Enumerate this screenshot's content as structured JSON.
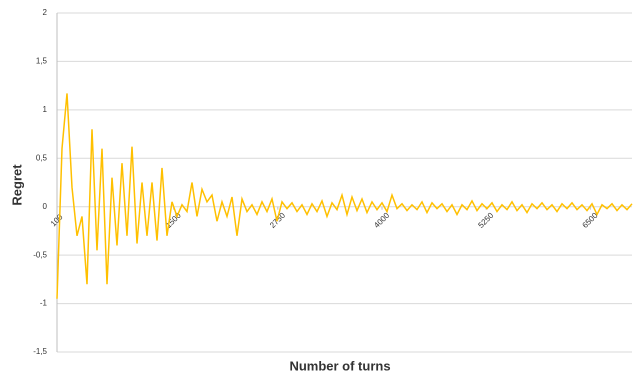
{
  "chart_data": {
    "type": "line",
    "xlabel": "Number of turns",
    "ylabel": "Regret",
    "x": [
      100,
      160,
      220,
      280,
      340,
      400,
      460,
      520,
      580,
      640,
      700,
      760,
      820,
      880,
      940,
      1000,
      1060,
      1120,
      1180,
      1240,
      1300,
      1360,
      1420,
      1480,
      1540,
      1600,
      1660,
      1720,
      1780,
      1840,
      1900,
      1960,
      2020,
      2080,
      2140,
      2200,
      2260,
      2320,
      2380,
      2440,
      2500,
      2560,
      2620,
      2680,
      2740,
      2800,
      2860,
      2920,
      2980,
      3040,
      3100,
      3160,
      3220,
      3280,
      3340,
      3400,
      3460,
      3520,
      3580,
      3640,
      3700,
      3760,
      3820,
      3880,
      3940,
      4000,
      4060,
      4120,
      4180,
      4240,
      4300,
      4360,
      4420,
      4480,
      4540,
      4600,
      4660,
      4720,
      4780,
      4840,
      4900,
      4960,
      5020,
      5080,
      5140,
      5200,
      5260,
      5320,
      5380,
      5440,
      5500,
      5560,
      5620,
      5680,
      5740,
      5800,
      5860,
      5920,
      5980,
      6040,
      6100,
      6160,
      6220,
      6280,
      6340,
      6400,
      6460,
      6520,
      6580,
      6640,
      6700,
      6760,
      6820,
      6880,
      6940,
      7000
    ],
    "series": [
      {
        "name": "Regret",
        "color": "#ffc000",
        "values": [
          -0.95,
          0.6,
          1.17,
          0.2,
          -0.3,
          -0.1,
          -0.8,
          0.8,
          -0.45,
          0.6,
          -0.8,
          0.3,
          -0.4,
          0.45,
          -0.3,
          0.62,
          -0.38,
          0.25,
          -0.3,
          0.25,
          -0.35,
          0.4,
          -0.3,
          0.05,
          -0.1,
          0.02,
          -0.05,
          0.25,
          -0.1,
          0.18,
          0.05,
          0.12,
          -0.15,
          0.05,
          -0.1,
          0.1,
          -0.3,
          0.08,
          -0.05,
          0.02,
          -0.08,
          0.05,
          -0.05,
          0.08,
          -0.15,
          0.05,
          -0.02,
          0.04,
          -0.05,
          0.02,
          -0.08,
          0.03,
          -0.05,
          0.06,
          -0.1,
          0.04,
          -0.03,
          0.12,
          -0.08,
          0.1,
          -0.04,
          0.08,
          -0.06,
          0.05,
          -0.03,
          0.04,
          -0.05,
          0.12,
          -0.02,
          0.03,
          -0.04,
          0.02,
          -0.03,
          0.05,
          -0.06,
          0.04,
          -0.02,
          0.03,
          -0.05,
          0.02,
          -0.08,
          0.02,
          -0.03,
          0.06,
          -0.04,
          0.03,
          -0.02,
          0.04,
          -0.05,
          0.02,
          -0.03,
          0.05,
          -0.04,
          0.02,
          -0.06,
          0.03,
          -0.02,
          0.04,
          -0.03,
          0.02,
          -0.05,
          0.03,
          -0.02,
          0.04,
          -0.03,
          0.02,
          -0.04,
          0.03,
          -0.08,
          0.02,
          -0.02,
          0.03,
          -0.04,
          0.02,
          -0.03,
          0.03
        ]
      }
    ],
    "xlim": [
      100,
      7000
    ],
    "xticks": [
      100,
      1500,
      2750,
      4000,
      5250,
      6500
    ],
    "ylim": [
      -1.5,
      2
    ],
    "yticks": [
      {
        "value": -1.5,
        "label": "-1,5"
      },
      -1,
      {
        "value": -0.5,
        "label": "-0,5"
      },
      0,
      {
        "value": 0.5,
        "label": "0,5"
      },
      1,
      {
        "value": 1.5,
        "label": "1,5"
      },
      2
    ],
    "grid": true
  }
}
